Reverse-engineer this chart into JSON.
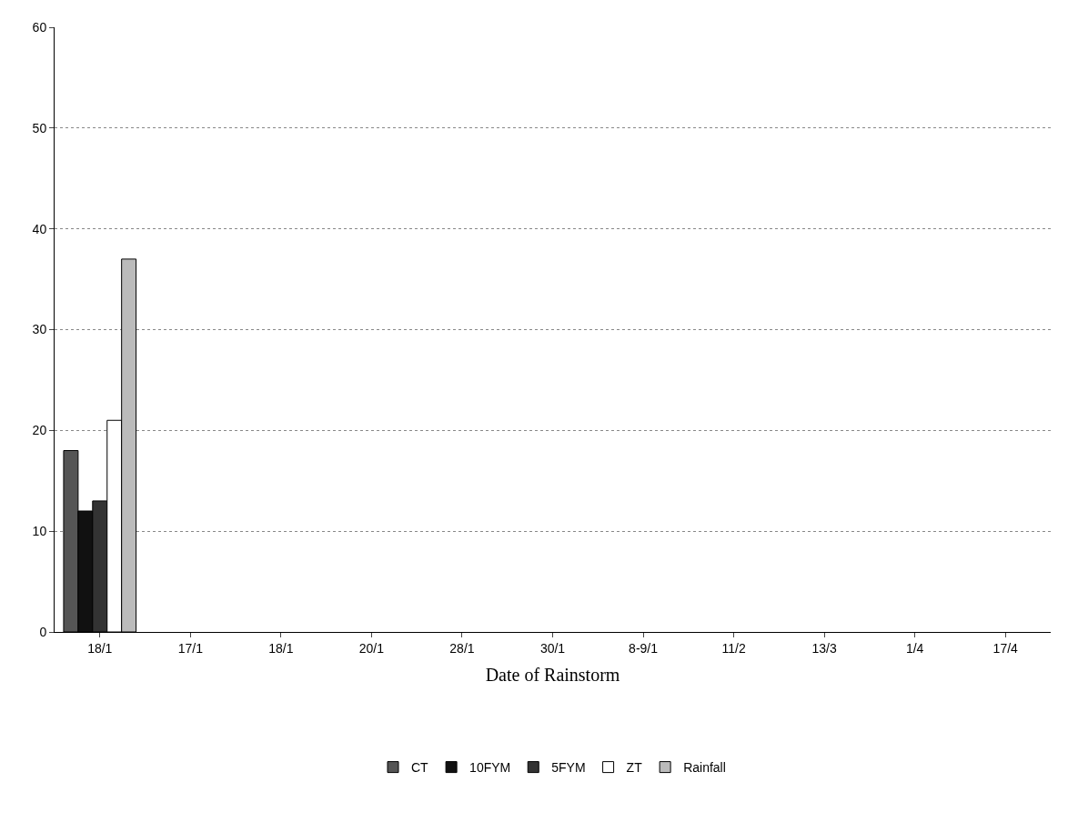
{
  "chart_data": {
    "type": "bar",
    "xlabel": "Date of Rainstorm",
    "categories": [
      "18/1",
      "17/1",
      "18/1",
      "20/1",
      "28/1",
      "30/1",
      "8-9/1",
      "11/2",
      "13/3",
      "1/4",
      "17/4"
    ],
    "series": [
      {
        "name": "CT",
        "color": "#555555",
        "values": [
          18,
          null,
          null,
          null,
          null,
          null,
          null,
          null,
          null,
          null,
          null
        ]
      },
      {
        "name": "10FYM",
        "color": "#111111",
        "values": [
          12,
          null,
          null,
          null,
          null,
          null,
          null,
          null,
          null,
          null,
          null
        ]
      },
      {
        "name": "5FYM",
        "color": "#333333",
        "values": [
          13,
          null,
          null,
          null,
          null,
          null,
          null,
          null,
          null,
          null,
          null
        ]
      },
      {
        "name": "ZT",
        "color": "#ffffff",
        "values": [
          21,
          null,
          null,
          null,
          null,
          null,
          null,
          null,
          null,
          null,
          null
        ]
      },
      {
        "name": "Rainfall",
        "color": "#bbbbbb",
        "values": [
          37,
          null,
          null,
          null,
          null,
          null,
          null,
          null,
          null,
          null,
          null
        ]
      }
    ],
    "ylim": [
      0,
      60
    ],
    "yticks": [
      0,
      10,
      20,
      30,
      40,
      50,
      60
    ],
    "grid": "y",
    "legend": "bottom"
  }
}
